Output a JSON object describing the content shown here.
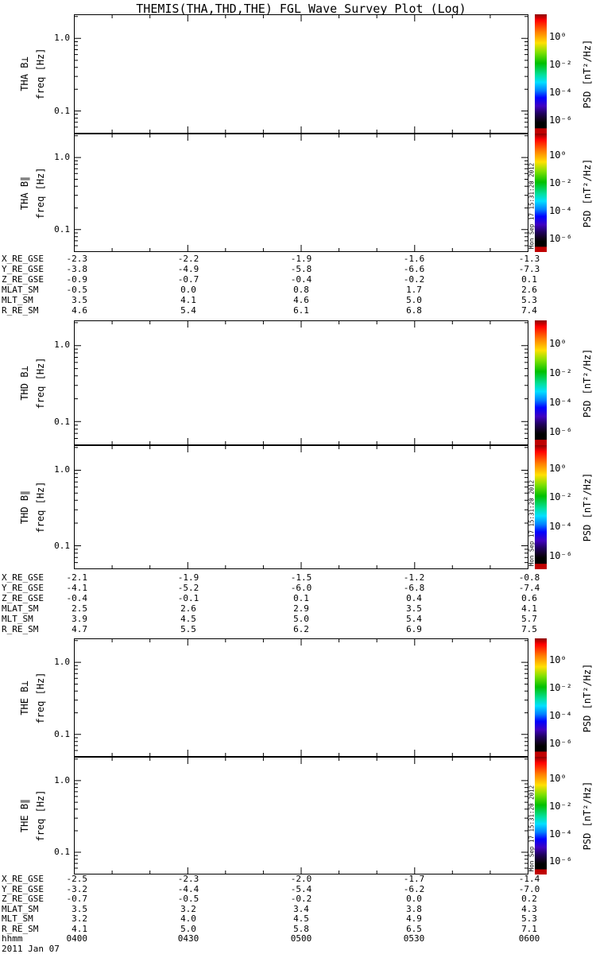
{
  "title": "THEMIS(THA,THD,THE) FGL Wave Survey Plot (Log)",
  "panels": [
    {
      "label": "THA B⊥",
      "ylabel": "freq [Hz]",
      "ytick_labels": [
        "1.0",
        "0.1"
      ]
    },
    {
      "label": "THA B∥",
      "ylabel": "freq [Hz]",
      "ytick_labels": [
        "1.0",
        "0.1"
      ]
    },
    {
      "label": "THD B⊥",
      "ylabel": "freq [Hz]",
      "ytick_labels": [
        "1.0",
        "0.1"
      ]
    },
    {
      "label": "THD B∥",
      "ylabel": "freq [Hz]",
      "ytick_labels": [
        "1.0",
        "0.1"
      ]
    },
    {
      "label": "THE B⊥",
      "ylabel": "freq [Hz]",
      "ytick_labels": [
        "1.0",
        "0.1"
      ]
    },
    {
      "label": "THE B∥",
      "ylabel": "freq [Hz]",
      "ytick_labels": [
        "1.0",
        "0.1"
      ]
    }
  ],
  "colorbar": {
    "unit_label": "PSD [nT²/Hz]",
    "tick_labels": [
      "10⁰",
      "10⁻²",
      "10⁻⁴",
      "10⁻⁶"
    ]
  },
  "plot_timestamp": "Mon Sep 17 15:31:20 2012",
  "ephemeris_tables": [
    {
      "probe": "THA",
      "rows": [
        {
          "label": "X_RE_GSE",
          "values": [
            "-2.3",
            "-2.2",
            "-1.9",
            "-1.6",
            "-1.3"
          ]
        },
        {
          "label": "Y_RE_GSE",
          "values": [
            "-3.8",
            "-4.9",
            "-5.8",
            "-6.6",
            "-7.3"
          ]
        },
        {
          "label": "Z_RE_GSE",
          "values": [
            "-0.9",
            "-0.7",
            "-0.4",
            "-0.2",
            "0.1"
          ]
        },
        {
          "label": "MLAT_SM",
          "values": [
            "-0.5",
            "0.0",
            "0.8",
            "1.7",
            "2.6"
          ]
        },
        {
          "label": "MLT_SM",
          "values": [
            "3.5",
            "4.1",
            "4.6",
            "5.0",
            "5.3"
          ]
        },
        {
          "label": "R_RE_SM",
          "values": [
            "4.6",
            "5.4",
            "6.1",
            "6.8",
            "7.4"
          ]
        }
      ]
    },
    {
      "probe": "THD",
      "rows": [
        {
          "label": "X_RE_GSE",
          "values": [
            "-2.1",
            "-1.9",
            "-1.5",
            "-1.2",
            "-0.8"
          ]
        },
        {
          "label": "Y_RE_GSE",
          "values": [
            "-4.1",
            "-5.2",
            "-6.0",
            "-6.8",
            "-7.4"
          ]
        },
        {
          "label": "Z_RE_GSE",
          "values": [
            "-0.4",
            "-0.1",
            "0.1",
            "0.4",
            "0.6"
          ]
        },
        {
          "label": "MLAT_SM",
          "values": [
            "2.5",
            "2.6",
            "2.9",
            "3.5",
            "4.1"
          ]
        },
        {
          "label": "MLT_SM",
          "values": [
            "3.9",
            "4.5",
            "5.0",
            "5.4",
            "5.7"
          ]
        },
        {
          "label": "R_RE_SM",
          "values": [
            "4.7",
            "5.5",
            "6.2",
            "6.9",
            "7.5"
          ]
        }
      ]
    },
    {
      "probe": "THE",
      "rows": [
        {
          "label": "X_RE_GSE",
          "values": [
            "-2.5",
            "-2.3",
            "-2.0",
            "-1.7",
            "-1.4"
          ]
        },
        {
          "label": "Y_RE_GSE",
          "values": [
            "-3.2",
            "-4.4",
            "-5.4",
            "-6.2",
            "-7.0"
          ]
        },
        {
          "label": "Z_RE_GSE",
          "values": [
            "-0.7",
            "-0.5",
            "-0.2",
            "0.0",
            "0.2"
          ]
        },
        {
          "label": "MLAT_SM",
          "values": [
            "3.5",
            "3.2",
            "3.4",
            "3.8",
            "4.3"
          ]
        },
        {
          "label": "MLT_SM",
          "values": [
            "3.2",
            "4.0",
            "4.5",
            "4.9",
            "5.3"
          ]
        },
        {
          "label": "R_RE_SM",
          "values": [
            "4.1",
            "5.0",
            "5.8",
            "6.5",
            "7.1"
          ]
        }
      ]
    }
  ],
  "time_axis": {
    "label": "hhmm",
    "values": [
      "0400",
      "0430",
      "0500",
      "0530",
      "0600"
    ],
    "date": "2011 Jan 07"
  },
  "chart_data": {
    "type": "heatmap",
    "title": "THEMIS(THA,THD,THE) FGL Wave Survey Plot (Log)",
    "description": "Six stacked dynamic-spectrum (spectrogram) panels; all panels are blank (no PSD values plotted).",
    "panels": [
      "THA B⊥",
      "THA B∥",
      "THD B⊥",
      "THD B∥",
      "THE B⊥",
      "THE B∥"
    ],
    "x_axis": {
      "label": "hhmm",
      "tick_labels": [
        "0400",
        "0430",
        "0500",
        "0530",
        "0600"
      ],
      "date": "2011 Jan 07",
      "minor_tick_minutes": 10
    },
    "y_axis": {
      "label": "freq [Hz]",
      "scale": "log",
      "major_ticks": [
        1.0,
        0.1
      ],
      "range_hz": [
        0.05,
        2.1
      ]
    },
    "color_axis": {
      "label": "PSD [nT²/Hz]",
      "scale": "log",
      "tick_values": [
        1,
        0.01,
        0.0001,
        1e-06
      ],
      "colormap": "rainbow (red high to black low, red under-range strip at bottom)"
    },
    "values": [],
    "ephemeris": {
      "THA": {
        "X_RE_GSE": [
          -2.3,
          -2.2,
          -1.9,
          -1.6,
          -1.3
        ],
        "Y_RE_GSE": [
          -3.8,
          -4.9,
          -5.8,
          -6.6,
          -7.3
        ],
        "Z_RE_GSE": [
          -0.9,
          -0.7,
          -0.4,
          -0.2,
          0.1
        ],
        "MLAT_SM": [
          -0.5,
          0.0,
          0.8,
          1.7,
          2.6
        ],
        "MLT_SM": [
          3.5,
          4.1,
          4.6,
          5.0,
          5.3
        ],
        "R_RE_SM": [
          4.6,
          5.4,
          6.1,
          6.8,
          7.4
        ]
      },
      "THD": {
        "X_RE_GSE": [
          -2.1,
          -1.9,
          -1.5,
          -1.2,
          -0.8
        ],
        "Y_RE_GSE": [
          -4.1,
          -5.2,
          -6.0,
          -6.8,
          -7.4
        ],
        "Z_RE_GSE": [
          -0.4,
          -0.1,
          0.1,
          0.4,
          0.6
        ],
        "MLAT_SM": [
          2.5,
          2.6,
          2.9,
          3.5,
          4.1
        ],
        "MLT_SM": [
          3.9,
          4.5,
          5.0,
          5.4,
          5.7
        ],
        "R_RE_SM": [
          4.7,
          5.5,
          6.2,
          6.9,
          7.5
        ]
      },
      "THE": {
        "X_RE_GSE": [
          -2.5,
          -2.3,
          -2.0,
          -1.7,
          -1.4
        ],
        "Y_RE_GSE": [
          -3.2,
          -4.4,
          -5.4,
          -6.2,
          -7.0
        ],
        "Z_RE_GSE": [
          -0.7,
          -0.5,
          -0.2,
          0.0,
          0.2
        ],
        "MLAT_SM": [
          3.5,
          3.2,
          3.4,
          3.8,
          4.3
        ],
        "MLT_SM": [
          3.2,
          4.0,
          4.5,
          4.9,
          5.3
        ],
        "R_RE_SM": [
          4.1,
          5.0,
          5.8,
          6.5,
          7.1
        ]
      }
    }
  }
}
